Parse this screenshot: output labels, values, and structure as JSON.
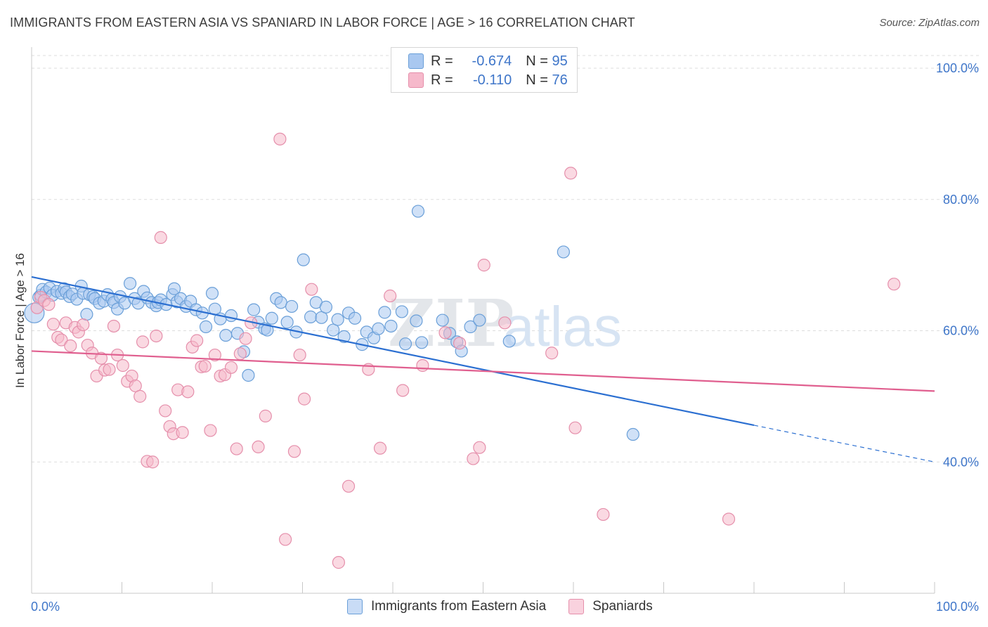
{
  "header": {
    "title": "IMMIGRANTS FROM EASTERN ASIA VS SPANIARD IN LABOR FORCE | AGE > 16 CORRELATION CHART",
    "source": "Source: ZipAtlas.com"
  },
  "legend": {
    "series1": {
      "r_label": "R =",
      "r_value": "-0.674",
      "n_label": "N =",
      "n_value": "95"
    },
    "series2": {
      "r_label": "R =",
      "r_value": "-0.110",
      "n_label": "N =",
      "n_value": "76"
    }
  },
  "watermark": {
    "zip": "ZIP",
    "atlas": "atlas"
  },
  "colors": {
    "blue_fill": "#a9c8f0",
    "blue_stroke": "#6a9fd8",
    "blue_line": "#2b6fd1",
    "pink_fill": "#f6b9cb",
    "pink_stroke": "#e58fab",
    "pink_line": "#e05f8f",
    "tick_text": "#3f76c9",
    "grid": "#dddddd"
  },
  "chart_data": {
    "type": "scatter",
    "title": "IMMIGRANTS FROM EASTERN ASIA VS SPANIARD IN LABOR FORCE | AGE > 16 CORRELATION CHART",
    "xlabel": "",
    "ylabel": "In Labor Force | Age > 16",
    "xlim": [
      0,
      100
    ],
    "ylim": [
      20,
      100
    ],
    "x_tick_labels": [
      "0.0%",
      "100.0%"
    ],
    "y_ticks": [
      40,
      60,
      80,
      100
    ],
    "y_tick_labels": [
      "40.0%",
      "60.0%",
      "80.0%",
      "100.0%"
    ],
    "grid": true,
    "legend_position": "top-center",
    "series": [
      {
        "name": "Immigrants from Eastern Asia",
        "color": "#a9c8f0",
        "trend": {
          "x": [
            0,
            80,
            100
          ],
          "y": [
            68.2,
            45.6,
            40.0
          ],
          "solid_until": 80
        },
        "points": [
          [
            0.3,
            62.7
          ],
          [
            0.8,
            65.1
          ],
          [
            1.0,
            65.4
          ],
          [
            1.2,
            66.3
          ],
          [
            1.6,
            65.9
          ],
          [
            2.0,
            66.5
          ],
          [
            2.3,
            65.4
          ],
          [
            2.8,
            66.0
          ],
          [
            3.3,
            65.7
          ],
          [
            3.6,
            66.4
          ],
          [
            3.8,
            65.9
          ],
          [
            4.2,
            65.2
          ],
          [
            4.5,
            65.6
          ],
          [
            5.0,
            64.8
          ],
          [
            5.5,
            66.8
          ],
          [
            5.7,
            65.7
          ],
          [
            6.1,
            62.5
          ],
          [
            6.4,
            65.5
          ],
          [
            6.8,
            65.2
          ],
          [
            7.0,
            64.9
          ],
          [
            7.5,
            64.2
          ],
          [
            8.0,
            64.5
          ],
          [
            8.4,
            65.5
          ],
          [
            8.9,
            64.8
          ],
          [
            9.1,
            64.3
          ],
          [
            9.5,
            63.3
          ],
          [
            9.8,
            65.2
          ],
          [
            10.3,
            64.2
          ],
          [
            10.9,
            67.2
          ],
          [
            11.4,
            64.9
          ],
          [
            11.8,
            64.2
          ],
          [
            12.4,
            66.0
          ],
          [
            12.8,
            65.0
          ],
          [
            13.3,
            64.3
          ],
          [
            13.8,
            63.8
          ],
          [
            14.0,
            64.3
          ],
          [
            14.3,
            64.7
          ],
          [
            14.9,
            64.0
          ],
          [
            15.6,
            65.5
          ],
          [
            15.8,
            66.4
          ],
          [
            16.1,
            64.4
          ],
          [
            16.5,
            64.9
          ],
          [
            17.1,
            63.7
          ],
          [
            17.6,
            64.5
          ],
          [
            18.2,
            63.2
          ],
          [
            18.9,
            62.7
          ],
          [
            19.3,
            60.6
          ],
          [
            20.0,
            65.7
          ],
          [
            20.3,
            63.3
          ],
          [
            20.9,
            61.8
          ],
          [
            21.5,
            59.3
          ],
          [
            22.1,
            62.3
          ],
          [
            22.8,
            59.6
          ],
          [
            23.5,
            56.8
          ],
          [
            24.0,
            53.2
          ],
          [
            24.6,
            63.2
          ],
          [
            25.1,
            61.3
          ],
          [
            25.8,
            60.3
          ],
          [
            26.1,
            60.1
          ],
          [
            26.6,
            61.9
          ],
          [
            27.1,
            64.9
          ],
          [
            27.6,
            64.3
          ],
          [
            28.3,
            61.3
          ],
          [
            28.8,
            63.7
          ],
          [
            29.3,
            59.8
          ],
          [
            30.1,
            70.8
          ],
          [
            30.9,
            62.1
          ],
          [
            31.5,
            64.3
          ],
          [
            32.1,
            62.0
          ],
          [
            32.6,
            63.6
          ],
          [
            33.4,
            60.1
          ],
          [
            33.9,
            61.7
          ],
          [
            34.6,
            59.1
          ],
          [
            35.1,
            62.7
          ],
          [
            35.8,
            61.9
          ],
          [
            36.6,
            57.9
          ],
          [
            37.1,
            59.8
          ],
          [
            37.9,
            58.9
          ],
          [
            38.4,
            60.3
          ],
          [
            39.1,
            62.8
          ],
          [
            39.8,
            60.7
          ],
          [
            41.0,
            62.9
          ],
          [
            41.4,
            58.0
          ],
          [
            42.6,
            61.5
          ],
          [
            42.8,
            78.2
          ],
          [
            43.2,
            58.2
          ],
          [
            45.5,
            61.6
          ],
          [
            46.3,
            59.6
          ],
          [
            47.1,
            58.3
          ],
          [
            47.6,
            56.9
          ],
          [
            48.6,
            60.6
          ],
          [
            49.6,
            61.6
          ],
          [
            52.9,
            58.4
          ],
          [
            58.9,
            72.0
          ],
          [
            66.6,
            44.2
          ]
        ]
      },
      {
        "name": "Spaniards",
        "color": "#f6b9cb",
        "trend": {
          "x": [
            0,
            100
          ],
          "y": [
            56.9,
            50.8
          ]
        },
        "points": [
          [
            0.6,
            63.5
          ],
          [
            1.0,
            65.1
          ],
          [
            1.4,
            64.6
          ],
          [
            1.9,
            64.0
          ],
          [
            2.4,
            61.0
          ],
          [
            2.9,
            59.0
          ],
          [
            3.3,
            58.6
          ],
          [
            3.8,
            61.2
          ],
          [
            4.3,
            57.7
          ],
          [
            4.8,
            60.5
          ],
          [
            5.2,
            59.8
          ],
          [
            5.7,
            60.9
          ],
          [
            6.2,
            57.8
          ],
          [
            6.7,
            56.6
          ],
          [
            7.2,
            53.1
          ],
          [
            7.7,
            55.8
          ],
          [
            8.1,
            54.0
          ],
          [
            8.6,
            54.1
          ],
          [
            9.1,
            60.7
          ],
          [
            9.5,
            56.3
          ],
          [
            10.1,
            54.7
          ],
          [
            10.6,
            52.3
          ],
          [
            11.1,
            53.1
          ],
          [
            11.5,
            51.6
          ],
          [
            12.0,
            50.0
          ],
          [
            12.3,
            58.3
          ],
          [
            12.8,
            40.1
          ],
          [
            13.4,
            40.0
          ],
          [
            13.8,
            59.2
          ],
          [
            14.3,
            74.2
          ],
          [
            14.8,
            47.8
          ],
          [
            15.3,
            45.4
          ],
          [
            15.7,
            44.3
          ],
          [
            16.2,
            51.0
          ],
          [
            16.7,
            44.5
          ],
          [
            17.3,
            50.7
          ],
          [
            17.8,
            57.5
          ],
          [
            18.3,
            58.5
          ],
          [
            18.8,
            54.5
          ],
          [
            19.2,
            54.6
          ],
          [
            19.8,
            44.8
          ],
          [
            20.3,
            56.3
          ],
          [
            20.9,
            53.1
          ],
          [
            21.4,
            53.3
          ],
          [
            22.1,
            54.4
          ],
          [
            22.7,
            42.0
          ],
          [
            23.1,
            56.5
          ],
          [
            23.7,
            58.8
          ],
          [
            24.3,
            61.2
          ],
          [
            25.1,
            42.3
          ],
          [
            25.9,
            47.0
          ],
          [
            27.5,
            89.2
          ],
          [
            28.1,
            28.2
          ],
          [
            29.1,
            41.6
          ],
          [
            29.7,
            56.3
          ],
          [
            30.2,
            49.6
          ],
          [
            31.0,
            66.3
          ],
          [
            34.0,
            24.7
          ],
          [
            35.1,
            36.3
          ],
          [
            37.3,
            54.1
          ],
          [
            38.6,
            42.1
          ],
          [
            39.7,
            65.3
          ],
          [
            41.1,
            50.9
          ],
          [
            43.3,
            54.7
          ],
          [
            45.8,
            59.7
          ],
          [
            47.4,
            58.1
          ],
          [
            48.9,
            40.5
          ],
          [
            49.6,
            42.2
          ],
          [
            50.1,
            70.0
          ],
          [
            52.4,
            61.2
          ],
          [
            57.6,
            56.6
          ],
          [
            59.7,
            84.0
          ],
          [
            60.2,
            45.2
          ],
          [
            63.3,
            32.0
          ],
          [
            77.2,
            31.3
          ],
          [
            95.5,
            67.1
          ]
        ]
      }
    ]
  }
}
